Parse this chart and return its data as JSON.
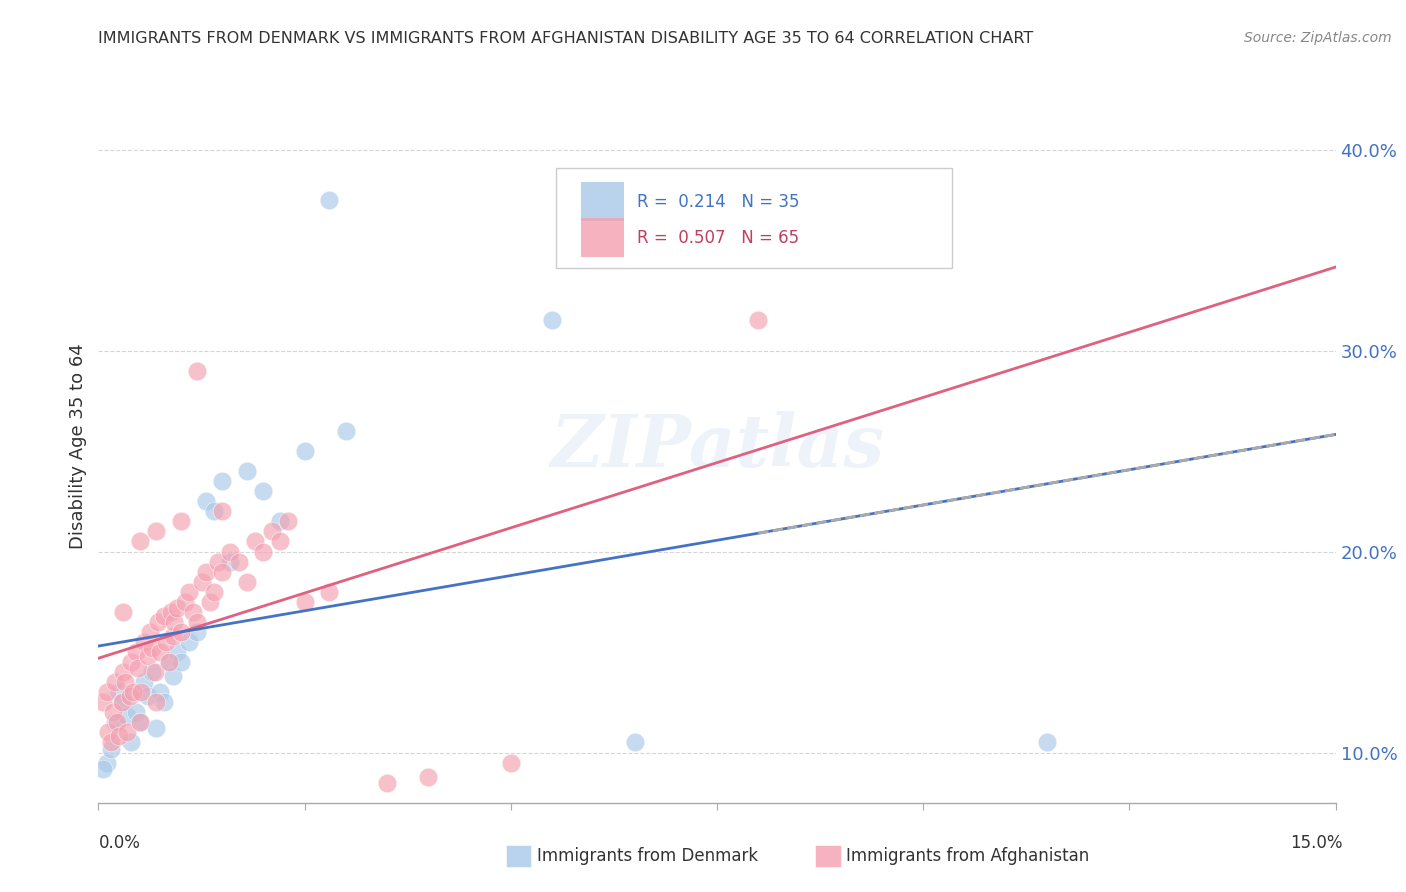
{
  "title": "IMMIGRANTS FROM DENMARK VS IMMIGRANTS FROM AFGHANISTAN DISABILITY AGE 35 TO 64 CORRELATION CHART",
  "source": "Source: ZipAtlas.com",
  "xlabel_bottom_left": "0.0%",
  "xlabel_bottom_right": "15.0%",
  "ylabel": "Disability Age 35 to 64",
  "xlim": [
    0.0,
    15.0
  ],
  "ylim": [
    7.5,
    43.0
  ],
  "yticks": [
    10.0,
    20.0,
    30.0,
    40.0
  ],
  "ytick_labels": [
    "10.0%",
    "20.0%",
    "30.0%",
    "40.0%"
  ],
  "legend_r_denmark": "R =  0.214   N = 35",
  "legend_r_afghanistan": "R =  0.507   N = 65",
  "color_denmark": "#a8c8e8",
  "color_afghanistan": "#f4a0b0",
  "color_denmark_line": "#4472c4",
  "color_afghanistan_line": "#e06080",
  "watermark": "ZIPatlas",
  "denmark_scatter": [
    [
      0.1,
      9.5
    ],
    [
      0.15,
      10.2
    ],
    [
      0.2,
      11.5
    ],
    [
      0.25,
      13.0
    ],
    [
      0.3,
      12.5
    ],
    [
      0.35,
      11.8
    ],
    [
      0.4,
      10.5
    ],
    [
      0.45,
      12.0
    ],
    [
      0.5,
      11.5
    ],
    [
      0.55,
      13.5
    ],
    [
      0.6,
      12.8
    ],
    [
      0.65,
      14.0
    ],
    [
      0.7,
      11.2
    ],
    [
      0.75,
      13.0
    ],
    [
      0.8,
      12.5
    ],
    [
      0.85,
      14.5
    ],
    [
      0.9,
      13.8
    ],
    [
      0.95,
      15.0
    ],
    [
      1.0,
      14.5
    ],
    [
      1.1,
      15.5
    ],
    [
      1.2,
      16.0
    ],
    [
      1.3,
      22.5
    ],
    [
      1.4,
      22.0
    ],
    [
      1.5,
      23.5
    ],
    [
      1.6,
      19.5
    ],
    [
      1.8,
      24.0
    ],
    [
      2.0,
      23.0
    ],
    [
      2.2,
      21.5
    ],
    [
      2.5,
      25.0
    ],
    [
      3.0,
      26.0
    ],
    [
      2.8,
      37.5
    ],
    [
      5.5,
      31.5
    ],
    [
      6.5,
      10.5
    ],
    [
      11.5,
      10.5
    ],
    [
      0.05,
      9.2
    ]
  ],
  "afghanistan_scatter": [
    [
      0.05,
      12.5
    ],
    [
      0.1,
      13.0
    ],
    [
      0.12,
      11.0
    ],
    [
      0.15,
      10.5
    ],
    [
      0.18,
      12.0
    ],
    [
      0.2,
      13.5
    ],
    [
      0.22,
      11.5
    ],
    [
      0.25,
      10.8
    ],
    [
      0.28,
      12.5
    ],
    [
      0.3,
      14.0
    ],
    [
      0.32,
      13.5
    ],
    [
      0.35,
      11.0
    ],
    [
      0.38,
      12.8
    ],
    [
      0.4,
      14.5
    ],
    [
      0.42,
      13.0
    ],
    [
      0.45,
      15.0
    ],
    [
      0.48,
      14.2
    ],
    [
      0.5,
      11.5
    ],
    [
      0.52,
      13.0
    ],
    [
      0.55,
      15.5
    ],
    [
      0.6,
      14.8
    ],
    [
      0.62,
      16.0
    ],
    [
      0.65,
      15.2
    ],
    [
      0.68,
      14.0
    ],
    [
      0.7,
      12.5
    ],
    [
      0.72,
      16.5
    ],
    [
      0.75,
      15.0
    ],
    [
      0.8,
      16.8
    ],
    [
      0.82,
      15.5
    ],
    [
      0.85,
      14.5
    ],
    [
      0.88,
      17.0
    ],
    [
      0.9,
      15.8
    ],
    [
      0.92,
      16.5
    ],
    [
      0.95,
      17.2
    ],
    [
      1.0,
      16.0
    ],
    [
      1.05,
      17.5
    ],
    [
      1.1,
      18.0
    ],
    [
      1.15,
      17.0
    ],
    [
      1.2,
      16.5
    ],
    [
      1.25,
      18.5
    ],
    [
      1.3,
      19.0
    ],
    [
      1.35,
      17.5
    ],
    [
      1.4,
      18.0
    ],
    [
      1.45,
      19.5
    ],
    [
      1.5,
      19.0
    ],
    [
      1.6,
      20.0
    ],
    [
      1.7,
      19.5
    ],
    [
      1.8,
      18.5
    ],
    [
      1.9,
      20.5
    ],
    [
      2.0,
      20.0
    ],
    [
      2.1,
      21.0
    ],
    [
      2.2,
      20.5
    ],
    [
      2.3,
      21.5
    ],
    [
      2.5,
      17.5
    ],
    [
      2.8,
      18.0
    ],
    [
      0.3,
      17.0
    ],
    [
      0.5,
      20.5
    ],
    [
      0.7,
      21.0
    ],
    [
      1.0,
      21.5
    ],
    [
      1.5,
      22.0
    ],
    [
      3.5,
      8.5
    ],
    [
      4.0,
      8.8
    ],
    [
      5.0,
      9.5
    ],
    [
      8.0,
      31.5
    ],
    [
      1.2,
      29.0
    ]
  ]
}
